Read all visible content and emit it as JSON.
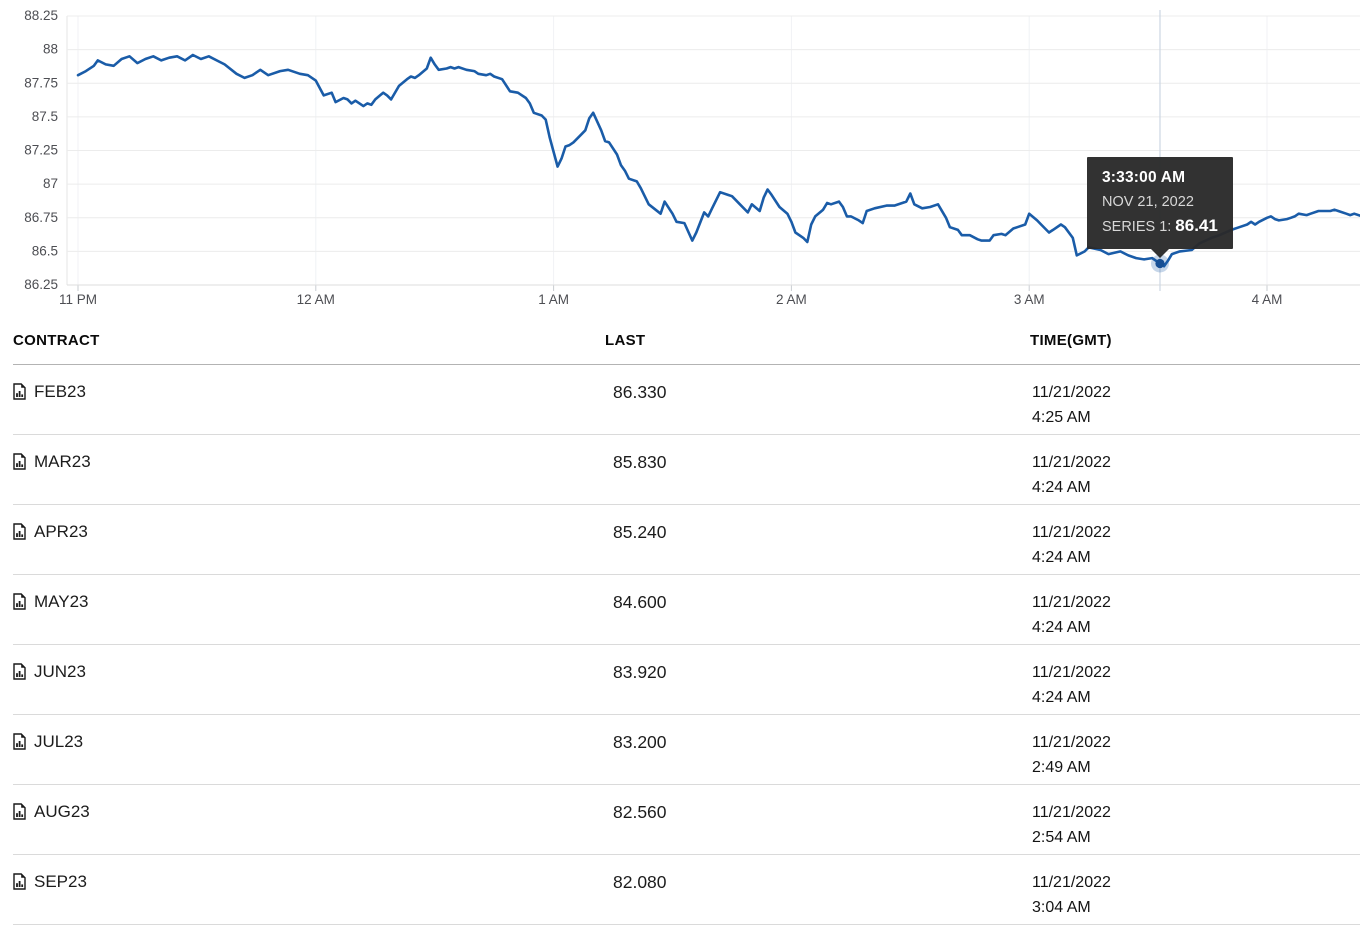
{
  "chart": {
    "tooltip": {
      "time": "3:33:00 AM",
      "date": "NOV 21, 2022",
      "series_label": "SERIES 1:",
      "value": "86.41"
    }
  },
  "chart_data": {
    "type": "line",
    "title": "",
    "xlabel": "",
    "ylabel": "",
    "grid": true,
    "legend": "none",
    "line_color": "#1a5ca8",
    "crosshair_color": "#ccd6e2",
    "grid_color": "#ececec",
    "axis_label_color": "#4d4e53",
    "ylim": [
      86.25,
      88.25
    ],
    "y_tick_labels": [
      "88.25",
      "88",
      "87.75",
      "87.5",
      "87.25",
      "87",
      "86.75",
      "86.5",
      "86.25"
    ],
    "y_tick_values": [
      88.25,
      88,
      87.75,
      87.5,
      87.25,
      87,
      86.75,
      86.5,
      86.25
    ],
    "x_tick_labels": [
      "11 PM",
      "12 AM",
      "1 AM",
      "2 AM",
      "3 AM",
      "4 AM"
    ],
    "x_tick_minutes": [
      0,
      60,
      120,
      180,
      240,
      300
    ],
    "x_unit": "minutes after 11:00 PM (GMT), Nov 20-21 2022",
    "highlight": {
      "minute": 273,
      "value": 86.41,
      "time_label": "3:33:00 AM",
      "date_label": "NOV 21, 2022",
      "series": "SERIES 1"
    },
    "series": [
      {
        "name": "SERIES 1",
        "points": [
          [
            0,
            87.81
          ],
          [
            2,
            87.84
          ],
          [
            4,
            87.88
          ],
          [
            5,
            87.92
          ],
          [
            7,
            87.89
          ],
          [
            9,
            87.88
          ],
          [
            11,
            87.93
          ],
          [
            13,
            87.95
          ],
          [
            15,
            87.9
          ],
          [
            17,
            87.93
          ],
          [
            19,
            87.95
          ],
          [
            21,
            87.92
          ],
          [
            23,
            87.94
          ],
          [
            25,
            87.95
          ],
          [
            27,
            87.92
          ],
          [
            29,
            87.96
          ],
          [
            31,
            87.93
          ],
          [
            33,
            87.95
          ],
          [
            35,
            87.92
          ],
          [
            37,
            87.89
          ],
          [
            40,
            87.82
          ],
          [
            42,
            87.79
          ],
          [
            44,
            87.81
          ],
          [
            46,
            87.85
          ],
          [
            48,
            87.81
          ],
          [
            51,
            87.84
          ],
          [
            53,
            87.85
          ],
          [
            56,
            87.82
          ],
          [
            58,
            87.81
          ],
          [
            60,
            87.77
          ],
          [
            62,
            87.66
          ],
          [
            64,
            87.68
          ],
          [
            65,
            87.61
          ],
          [
            67,
            87.64
          ],
          [
            68,
            87.63
          ],
          [
            69,
            87.6
          ],
          [
            70,
            87.62
          ],
          [
            72,
            87.58
          ],
          [
            73,
            87.6
          ],
          [
            74,
            87.59
          ],
          [
            75,
            87.63
          ],
          [
            77,
            87.68
          ],
          [
            78,
            87.66
          ],
          [
            79,
            87.63
          ],
          [
            81,
            87.73
          ],
          [
            83,
            87.78
          ],
          [
            84,
            87.8
          ],
          [
            85,
            87.79
          ],
          [
            86,
            87.81
          ],
          [
            88,
            87.86
          ],
          [
            89,
            87.94
          ],
          [
            90,
            87.89
          ],
          [
            91,
            87.85
          ],
          [
            93,
            87.86
          ],
          [
            94,
            87.87
          ],
          [
            95,
            87.86
          ],
          [
            96,
            87.87
          ],
          [
            98,
            87.85
          ],
          [
            100,
            87.84
          ],
          [
            101,
            87.82
          ],
          [
            103,
            87.81
          ],
          [
            104,
            87.82
          ],
          [
            105,
            87.8
          ],
          [
            107,
            87.78
          ],
          [
            109,
            87.69
          ],
          [
            111,
            87.68
          ],
          [
            113,
            87.64
          ],
          [
            114,
            87.6
          ],
          [
            115,
            87.53
          ],
          [
            117,
            87.51
          ],
          [
            118,
            87.48
          ],
          [
            119,
            87.35
          ],
          [
            121,
            87.13
          ],
          [
            122,
            87.19
          ],
          [
            123,
            87.28
          ],
          [
            124,
            87.29
          ],
          [
            125,
            87.31
          ],
          [
            127,
            87.37
          ],
          [
            128,
            87.4
          ],
          [
            129,
            87.49
          ],
          [
            130,
            87.53
          ],
          [
            132,
            87.4
          ],
          [
            133,
            87.32
          ],
          [
            134,
            87.31
          ],
          [
            136,
            87.22
          ],
          [
            137,
            87.14
          ],
          [
            138,
            87.1
          ],
          [
            139,
            87.04
          ],
          [
            141,
            87.02
          ],
          [
            142,
            86.97
          ],
          [
            144,
            86.85
          ],
          [
            147,
            86.78
          ],
          [
            148,
            86.87
          ],
          [
            150,
            86.78
          ],
          [
            151,
            86.72
          ],
          [
            153,
            86.71
          ],
          [
            155,
            86.58
          ],
          [
            156,
            86.64
          ],
          [
            158,
            86.79
          ],
          [
            159,
            86.76
          ],
          [
            160,
            86.82
          ],
          [
            162,
            86.94
          ],
          [
            164,
            86.92
          ],
          [
            165,
            86.91
          ],
          [
            167,
            86.85
          ],
          [
            169,
            86.79
          ],
          [
            170,
            86.85
          ],
          [
            172,
            86.8
          ],
          [
            173,
            86.9
          ],
          [
            174,
            86.96
          ],
          [
            175,
            86.92
          ],
          [
            177,
            86.83
          ],
          [
            179,
            86.78
          ],
          [
            180,
            86.72
          ],
          [
            181,
            86.64
          ],
          [
            183,
            86.6
          ],
          [
            184,
            86.57
          ],
          [
            185,
            86.7
          ],
          [
            186,
            86.76
          ],
          [
            188,
            86.81
          ],
          [
            189,
            86.86
          ],
          [
            190,
            86.85
          ],
          [
            192,
            86.87
          ],
          [
            193,
            86.83
          ],
          [
            194,
            86.76
          ],
          [
            195,
            86.76
          ],
          [
            197,
            86.73
          ],
          [
            198,
            86.71
          ],
          [
            199,
            86.8
          ],
          [
            201,
            86.82
          ],
          [
            204,
            86.84
          ],
          [
            206,
            86.84
          ],
          [
            209,
            86.87
          ],
          [
            210,
            86.93
          ],
          [
            211,
            86.85
          ],
          [
            213,
            86.82
          ],
          [
            215,
            86.83
          ],
          [
            217,
            86.85
          ],
          [
            219,
            86.75
          ],
          [
            220,
            86.68
          ],
          [
            222,
            86.66
          ],
          [
            223,
            86.62
          ],
          [
            225,
            86.62
          ],
          [
            227,
            86.59
          ],
          [
            228,
            86.58
          ],
          [
            230,
            86.58
          ],
          [
            231,
            86.62
          ],
          [
            233,
            86.63
          ],
          [
            234,
            86.62
          ],
          [
            236,
            86.67
          ],
          [
            237,
            86.68
          ],
          [
            239,
            86.7
          ],
          [
            240,
            86.78
          ],
          [
            242,
            86.73
          ],
          [
            243,
            86.7
          ],
          [
            245,
            86.64
          ],
          [
            246,
            86.66
          ],
          [
            248,
            86.7
          ],
          [
            249,
            86.68
          ],
          [
            251,
            86.6
          ],
          [
            252,
            86.47
          ],
          [
            254,
            86.5
          ],
          [
            255,
            86.53
          ],
          [
            258,
            86.51
          ],
          [
            260,
            86.48
          ],
          [
            263,
            86.5
          ],
          [
            265,
            86.47
          ],
          [
            267,
            86.45
          ],
          [
            269,
            86.44
          ],
          [
            271,
            86.45
          ],
          [
            273,
            86.41
          ],
          [
            274,
            86.39
          ],
          [
            275,
            86.43
          ],
          [
            276,
            86.48
          ],
          [
            278,
            86.5
          ],
          [
            281,
            86.51
          ],
          [
            283,
            86.56
          ],
          [
            286,
            86.6
          ],
          [
            288,
            86.62
          ],
          [
            291,
            86.66
          ],
          [
            293,
            86.68
          ],
          [
            295,
            86.7
          ],
          [
            296,
            86.72
          ],
          [
            297,
            86.7
          ],
          [
            298,
            86.72
          ],
          [
            300,
            86.75
          ],
          [
            301,
            86.76
          ],
          [
            302,
            86.74
          ],
          [
            303,
            86.73
          ],
          [
            305,
            86.74
          ],
          [
            306,
            86.75
          ],
          [
            307,
            86.76
          ],
          [
            308,
            86.78
          ],
          [
            310,
            86.77
          ],
          [
            311,
            86.78
          ],
          [
            313,
            86.8
          ],
          [
            316,
            86.8
          ],
          [
            317,
            86.81
          ],
          [
            318,
            86.8
          ],
          [
            320,
            86.78
          ],
          [
            321,
            86.77
          ],
          [
            322,
            86.78
          ],
          [
            324,
            86.76
          ]
        ]
      }
    ]
  },
  "table": {
    "headers": [
      "CONTRACT",
      "LAST",
      "TIME(GMT)"
    ],
    "rows": [
      {
        "contract": "FEB23",
        "last": "86.330",
        "date": "11/21/2022",
        "time": "4:25 AM"
      },
      {
        "contract": "MAR23",
        "last": "85.830",
        "date": "11/21/2022",
        "time": "4:24 AM"
      },
      {
        "contract": "APR23",
        "last": "85.240",
        "date": "11/21/2022",
        "time": "4:24 AM"
      },
      {
        "contract": "MAY23",
        "last": "84.600",
        "date": "11/21/2022",
        "time": "4:24 AM"
      },
      {
        "contract": "JUN23",
        "last": "83.920",
        "date": "11/21/2022",
        "time": "4:24 AM"
      },
      {
        "contract": "JUL23",
        "last": "83.200",
        "date": "11/21/2022",
        "time": "2:49 AM"
      },
      {
        "contract": "AUG23",
        "last": "82.560",
        "date": "11/21/2022",
        "time": "2:54 AM"
      },
      {
        "contract": "SEP23",
        "last": "82.080",
        "date": "11/21/2022",
        "time": "3:04 AM"
      }
    ]
  }
}
